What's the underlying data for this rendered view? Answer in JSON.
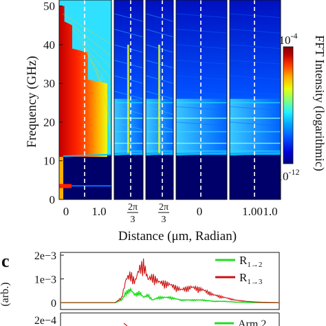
{
  "colors": {
    "colormap": [
      "#000080",
      "#0000d8",
      "#0050ff",
      "#00a8ff",
      "#20f0ff",
      "#80ff80",
      "#e8ff10",
      "#ffb000",
      "#ff4000",
      "#c00000",
      "#800000"
    ],
    "guide_line": "#ffffff",
    "series_green": "#22dd22",
    "series_red": "#cc1111",
    "axis": "#111111"
  },
  "top": {
    "ylabel": "Frequency (GHz)",
    "xlabel": "Distance (μm, Radian)",
    "yticks": [
      "0",
      "10",
      "20",
      "30",
      "40",
      "50"
    ],
    "xticks": [
      {
        "panel": 0,
        "label": "0"
      },
      {
        "panel": 0,
        "label": "1.0"
      },
      {
        "panel": 1,
        "num": "2π",
        "den": "3"
      },
      {
        "panel": 2,
        "num": "2π",
        "den": "3"
      },
      {
        "panel": 3,
        "label": "0"
      },
      {
        "panel": 3,
        "label": "1.00"
      },
      {
        "panel": 4,
        "label": "1.0"
      }
    ],
    "colorbar": {
      "label": "FFT Intensity (logarithmic)",
      "max": {
        "base": "10",
        "exp": "-4"
      },
      "min": {
        "base": "10",
        "exp": "-12"
      }
    }
  },
  "panel_c": {
    "letter": "c",
    "ylabel": "(arb.)",
    "yticks": [
      "2e−3",
      "1e−3",
      "0"
    ],
    "legend": [
      {
        "base": "R",
        "sub": "1→2"
      },
      {
        "base": "R",
        "sub": "1→3"
      }
    ]
  },
  "panel_d": {
    "ytick": "2e−4",
    "legend": [
      "Arm 2"
    ]
  },
  "chart_data": [
    {
      "type": "heatmap",
      "title": "",
      "xlabel": "Distance (μm, Radian)",
      "ylabel": "Frequency (GHz)",
      "ylim": [
        0,
        50
      ],
      "color_scale": "log",
      "color_range": [
        1e-12,
        0.0001
      ],
      "panels": 5,
      "notes": "FFT intensity vs position and frequency; lowest band edge near 11 GHz; dashed white guide line in each panel"
    },
    {
      "type": "line",
      "xlabel": "",
      "ylabel": "(arb.)",
      "ylim": [
        0,
        0.002
      ],
      "x_relative": [
        0.0,
        0.1,
        0.2,
        0.25,
        0.28,
        0.3,
        0.32,
        0.34,
        0.36,
        0.38,
        0.4,
        0.42,
        0.45,
        0.5,
        0.55,
        0.6,
        0.65,
        0.7,
        0.75,
        0.8,
        0.85,
        0.9,
        1.0
      ],
      "series": [
        {
          "name": "R1→2",
          "values": [
            0,
            0,
            0,
            0,
            0.0001,
            0.0004,
            0.0005,
            0.0003,
            0.0004,
            0.0002,
            0.0003,
            0.0001,
            0.0002,
            0.0002,
            0.0001,
            0.0001,
            0.0001,
            5e-05,
            5e-05,
            2e-05,
            1e-05,
            0,
            0
          ]
        },
        {
          "name": "R1→3",
          "values": [
            0,
            0,
            0,
            0,
            0.0002,
            0.0009,
            0.0011,
            0.0008,
            0.0013,
            0.0015,
            0.0009,
            0.001,
            0.0008,
            0.0007,
            0.0005,
            0.0006,
            0.0005,
            0.0003,
            0.0002,
            0.0001,
            5e-05,
            2e-05,
            0
          ]
        }
      ]
    }
  ]
}
